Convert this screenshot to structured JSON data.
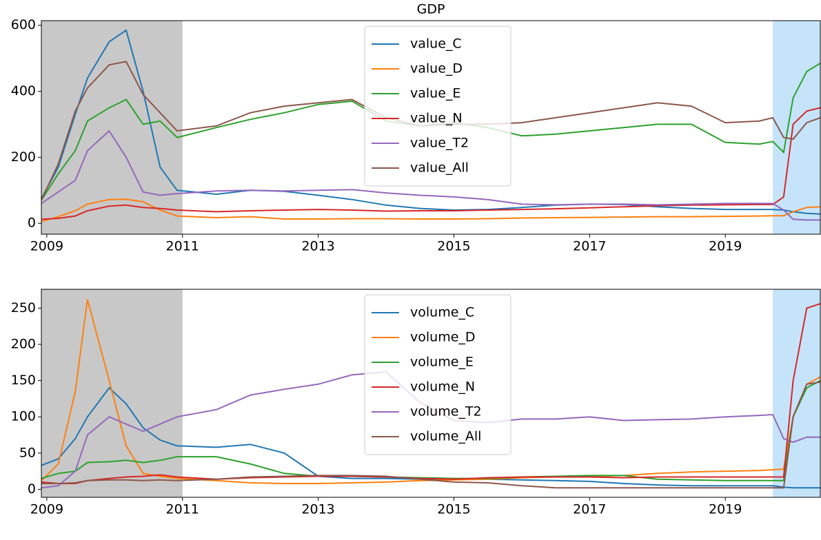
{
  "chart_data": [
    {
      "type": "line",
      "title": "GDP",
      "x": [
        2008.92,
        2009.17,
        2009.42,
        2009.6,
        2009.92,
        2010.17,
        2010.42,
        2010.67,
        2010.92,
        2011.5,
        2012,
        2012.5,
        2013,
        2013.5,
        2014,
        2014.5,
        2015,
        2015.5,
        2016,
        2016.5,
        2017,
        2017.5,
        2018,
        2018.5,
        2019,
        2019.5,
        2019.7,
        2019.86,
        2020.0,
        2020.2,
        2020.4
      ],
      "series": [
        {
          "name": "value_C",
          "color": "#1f77b4",
          "values": [
            75,
            170,
            330,
            440,
            550,
            585,
            400,
            170,
            100,
            88,
            100,
            97,
            85,
            72,
            55,
            45,
            40,
            42,
            48,
            55,
            58,
            57,
            50,
            45,
            42,
            42,
            42,
            40,
            35,
            30,
            28
          ]
        },
        {
          "name": "value_D",
          "color": "#ff7f0e",
          "values": [
            5,
            20,
            38,
            58,
            72,
            73,
            65,
            40,
            22,
            17,
            20,
            13,
            13,
            14,
            14,
            13,
            13,
            14,
            16,
            17,
            18,
            19,
            20,
            20,
            21,
            22,
            23,
            23,
            35,
            48,
            50
          ]
        },
        {
          "name": "value_E",
          "color": "#2ca02c",
          "values": [
            70,
            150,
            220,
            310,
            350,
            375,
            300,
            310,
            260,
            290,
            315,
            335,
            360,
            370,
            310,
            295,
            305,
            290,
            265,
            270,
            280,
            290,
            300,
            300,
            245,
            240,
            248,
            215,
            380,
            460,
            485
          ]
        },
        {
          "name": "value_N",
          "color": "#d62728",
          "values": [
            12,
            15,
            22,
            38,
            52,
            55,
            48,
            45,
            40,
            35,
            38,
            40,
            42,
            40,
            37,
            38,
            38,
            40,
            42,
            44,
            47,
            50,
            53,
            55,
            56,
            57,
            57,
            80,
            300,
            340,
            350
          ]
        },
        {
          "name": "value_T2",
          "color": "#9467bd",
          "values": [
            60,
            95,
            130,
            220,
            280,
            200,
            95,
            85,
            90,
            98,
            100,
            98,
            100,
            102,
            92,
            85,
            80,
            72,
            58,
            56,
            58,
            58,
            56,
            58,
            60,
            60,
            60,
            40,
            12,
            10,
            10
          ]
        },
        {
          "name": "value_All",
          "color": "#8c564b",
          "values": [
            70,
            180,
            340,
            410,
            480,
            490,
            390,
            335,
            280,
            295,
            335,
            355,
            365,
            375,
            320,
            295,
            300,
            300,
            305,
            320,
            335,
            350,
            365,
            355,
            305,
            310,
            320,
            260,
            255,
            305,
            320
          ]
        }
      ],
      "xlim": [
        2008.92,
        2020.4
      ],
      "xticks": [
        2009,
        2011,
        2013,
        2015,
        2017,
        2019
      ],
      "ylim": [
        -33,
        614
      ],
      "yticks": [
        0,
        200,
        400,
        600
      ],
      "spans": [
        {
          "from": 2008.92,
          "to": 2011,
          "color": "#c8c8c8"
        },
        {
          "from": 2019.7,
          "to": 2020.4,
          "color": "#c5e4fa"
        }
      ],
      "legend": "upper center"
    },
    {
      "type": "line",
      "x": [
        2008.92,
        2009.17,
        2009.42,
        2009.6,
        2009.92,
        2010.17,
        2010.42,
        2010.67,
        2010.92,
        2011.5,
        2012,
        2012.5,
        2013,
        2013.5,
        2014,
        2014.5,
        2015,
        2015.5,
        2016,
        2016.5,
        2017,
        2017.5,
        2018,
        2018.5,
        2019,
        2019.5,
        2019.7,
        2019.86,
        2020.0,
        2020.2,
        2020.4
      ],
      "series": [
        {
          "name": "volume_C",
          "color": "#1f77b4",
          "values": [
            33,
            42,
            70,
            100,
            140,
            118,
            85,
            68,
            60,
            58,
            62,
            50,
            18,
            15,
            15,
            14,
            14,
            14,
            13,
            12,
            11,
            8,
            6,
            5,
            5,
            5,
            5,
            3,
            2,
            2,
            2
          ]
        },
        {
          "name": "volume_D",
          "color": "#ff7f0e",
          "values": [
            12,
            35,
            135,
            262,
            150,
            60,
            22,
            18,
            15,
            12,
            9,
            8,
            8,
            9,
            10,
            12,
            13,
            14,
            16,
            17,
            18,
            19,
            22,
            24,
            25,
            26,
            27,
            28,
            100,
            145,
            155
          ]
        },
        {
          "name": "volume_E",
          "color": "#2ca02c",
          "values": [
            15,
            22,
            25,
            37,
            38,
            40,
            37,
            40,
            45,
            45,
            35,
            22,
            18,
            18,
            17,
            16,
            15,
            15,
            17,
            18,
            19,
            19,
            14,
            13,
            12,
            12,
            12,
            12,
            100,
            140,
            150
          ]
        },
        {
          "name": "volume_N",
          "color": "#d62728",
          "values": [
            10,
            8,
            8,
            12,
            15,
            17,
            18,
            20,
            17,
            14,
            16,
            17,
            18,
            18,
            17,
            15,
            14,
            16,
            17,
            17,
            17,
            16,
            17,
            17,
            17,
            17,
            17,
            17,
            150,
            250,
            256
          ]
        },
        {
          "name": "volume_T2",
          "color": "#9467bd",
          "values": [
            2,
            5,
            25,
            75,
            100,
            90,
            80,
            90,
            100,
            110,
            130,
            138,
            145,
            158,
            162,
            120,
            95,
            92,
            97,
            97,
            100,
            95,
            96,
            97,
            100,
            102,
            103,
            70,
            65,
            72,
            72
          ]
        },
        {
          "name": "volume_All",
          "color": "#8c564b",
          "values": [
            8,
            8,
            9,
            12,
            13,
            13,
            12,
            13,
            12,
            14,
            17,
            18,
            19,
            19,
            18,
            14,
            10,
            9,
            5,
            2,
            2,
            2,
            2,
            2,
            2,
            2,
            2,
            2,
            100,
            145,
            148
          ]
        }
      ],
      "xlim": [
        2008.92,
        2020.4
      ],
      "xticks": [
        2009,
        2011,
        2013,
        2015,
        2017,
        2019
      ],
      "ylim": [
        -11,
        276
      ],
      "yticks": [
        0,
        50,
        100,
        150,
        200,
        250
      ],
      "spans": [
        {
          "from": 2008.92,
          "to": 2011,
          "color": "#c8c8c8"
        },
        {
          "from": 2019.7,
          "to": 2020.4,
          "color": "#c5e4fa"
        }
      ],
      "legend": "upper center"
    }
  ]
}
